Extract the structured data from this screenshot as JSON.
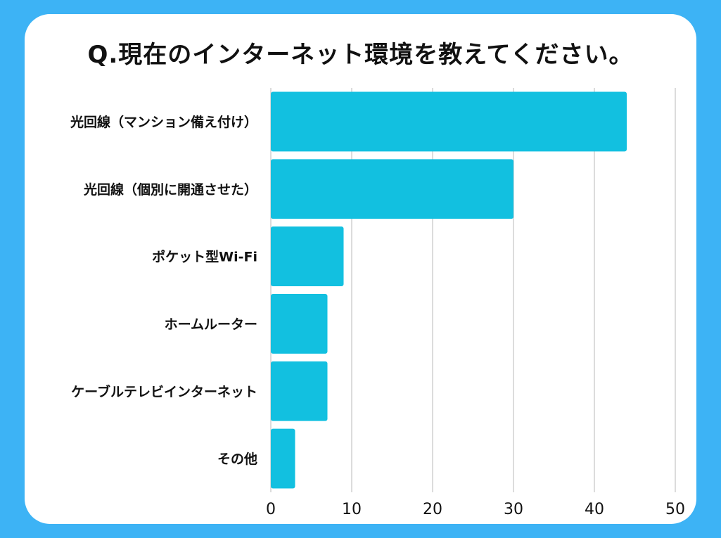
{
  "colors": {
    "background": "#3db3f5",
    "card": "#ffffff",
    "bar": "#12c0e0",
    "grid": "#d0d0d0",
    "text": "#111111"
  },
  "chart_data": {
    "type": "bar",
    "orientation": "horizontal",
    "title": "Q.現在のインターネット環境を教えてください。",
    "categories": [
      "光回線（マンション備え付け）",
      "光回線（個別に開通させた）",
      "ポケット型Wi-Fi",
      "ホームルーター",
      "ケーブルテレビインターネット",
      "その他"
    ],
    "values": [
      44,
      30,
      9,
      7,
      7,
      3
    ],
    "xlim": [
      0,
      50
    ],
    "xticks": [
      0,
      10,
      20,
      30,
      40,
      50
    ],
    "xlabel": "",
    "ylabel": "",
    "grid": true,
    "legend": "none"
  }
}
